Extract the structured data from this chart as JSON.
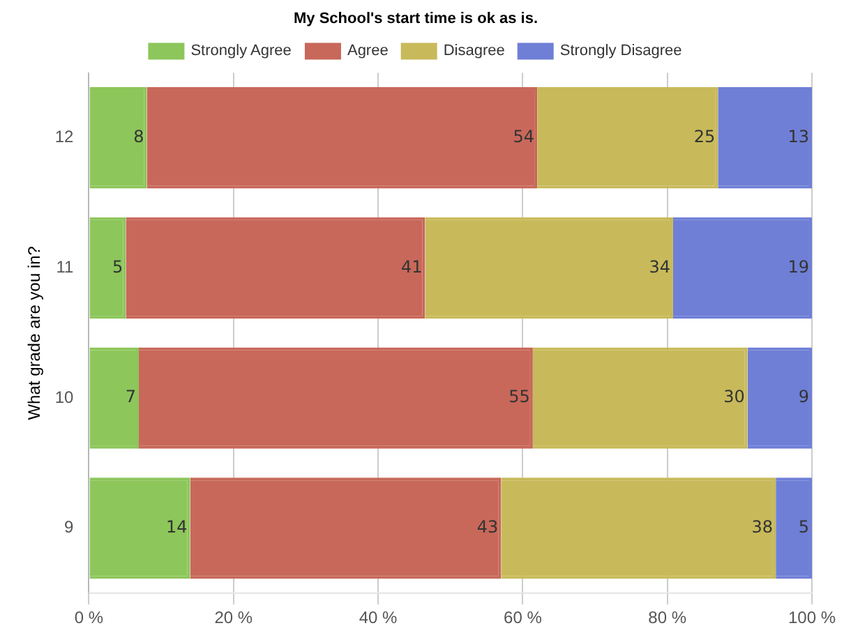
{
  "chart_data": {
    "type": "bar",
    "orientation": "horizontal",
    "stacked": true,
    "legend_title": "My School's start time is ok as is.",
    "ylabel": "What grade are you in?",
    "categories": [
      "12",
      "11",
      "10",
      "9"
    ],
    "series": [
      {
        "name": "Strongly Agree",
        "color": "#8dc65a",
        "values": [
          8,
          5.1,
          6.9,
          14
        ],
        "value_labels": [
          "8",
          "5",
          "7",
          "14"
        ]
      },
      {
        "name": "Agree",
        "color": "#c8685a",
        "values": [
          54,
          41.4,
          54.5,
          43
        ],
        "value_labels": [
          "54",
          "41",
          "55",
          "43"
        ]
      },
      {
        "name": "Disagree",
        "color": "#c8ba5a",
        "values": [
          25,
          34.3,
          29.7,
          38
        ],
        "value_labels": [
          "25",
          "34",
          "30",
          "38"
        ]
      },
      {
        "name": "Strongly Disagree",
        "color": "#6f7fd6",
        "values": [
          13,
          19.2,
          8.9,
          5
        ],
        "value_labels": [
          "13",
          "19",
          "9",
          "5"
        ]
      }
    ],
    "xlim": [
      0,
      100
    ],
    "xticks": [
      {
        "value": 0,
        "label": "0 %"
      },
      {
        "value": 20,
        "label": "20 %"
      },
      {
        "value": 40,
        "label": "40 %"
      },
      {
        "value": 60,
        "label": "60 %"
      },
      {
        "value": 80,
        "label": "80 %"
      },
      {
        "value": 100,
        "label": "100 %"
      }
    ],
    "grid": "x",
    "legend": "top"
  }
}
